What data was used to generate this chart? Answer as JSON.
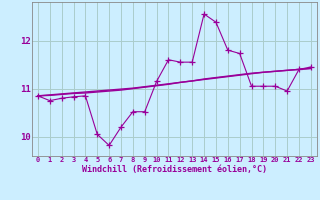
{
  "xlabel": "Windchill (Refroidissement éolien,°C)",
  "background_color": "#cceeff",
  "grid_color": "#aacccc",
  "line_color": "#990099",
  "x_values": [
    0,
    1,
    2,
    3,
    4,
    5,
    6,
    7,
    8,
    9,
    10,
    11,
    12,
    13,
    14,
    15,
    16,
    17,
    18,
    19,
    20,
    21,
    22,
    23
  ],
  "y_main": [
    10.85,
    10.75,
    10.8,
    10.83,
    10.85,
    10.05,
    9.82,
    10.2,
    10.52,
    10.52,
    11.15,
    11.6,
    11.55,
    11.55,
    12.55,
    12.38,
    11.8,
    11.73,
    11.05,
    11.05,
    11.05,
    10.95,
    11.4,
    11.45
  ],
  "y_smooth1": [
    10.85,
    10.87,
    10.89,
    10.91,
    10.93,
    10.95,
    10.97,
    10.99,
    11.01,
    11.04,
    11.07,
    11.1,
    11.13,
    11.16,
    11.19,
    11.22,
    11.25,
    11.28,
    11.31,
    11.34,
    11.36,
    11.38,
    11.4,
    11.42
  ],
  "y_smooth2": [
    10.85,
    10.86,
    10.88,
    10.9,
    10.91,
    10.93,
    10.95,
    10.97,
    11.0,
    11.03,
    11.06,
    11.09,
    11.13,
    11.16,
    11.2,
    11.23,
    11.26,
    11.29,
    11.32,
    11.34,
    11.36,
    11.38,
    11.4,
    11.42
  ],
  "ylim": [
    9.6,
    12.8
  ],
  "yticks": [
    10,
    11,
    12
  ],
  "xtick_labels": [
    "0",
    "1",
    "2",
    "3",
    "4",
    "5",
    "6",
    "7",
    "8",
    "9",
    "10",
    "11",
    "12",
    "13",
    "14",
    "15",
    "16",
    "17",
    "18",
    "19",
    "20",
    "21",
    "22",
    "23"
  ]
}
